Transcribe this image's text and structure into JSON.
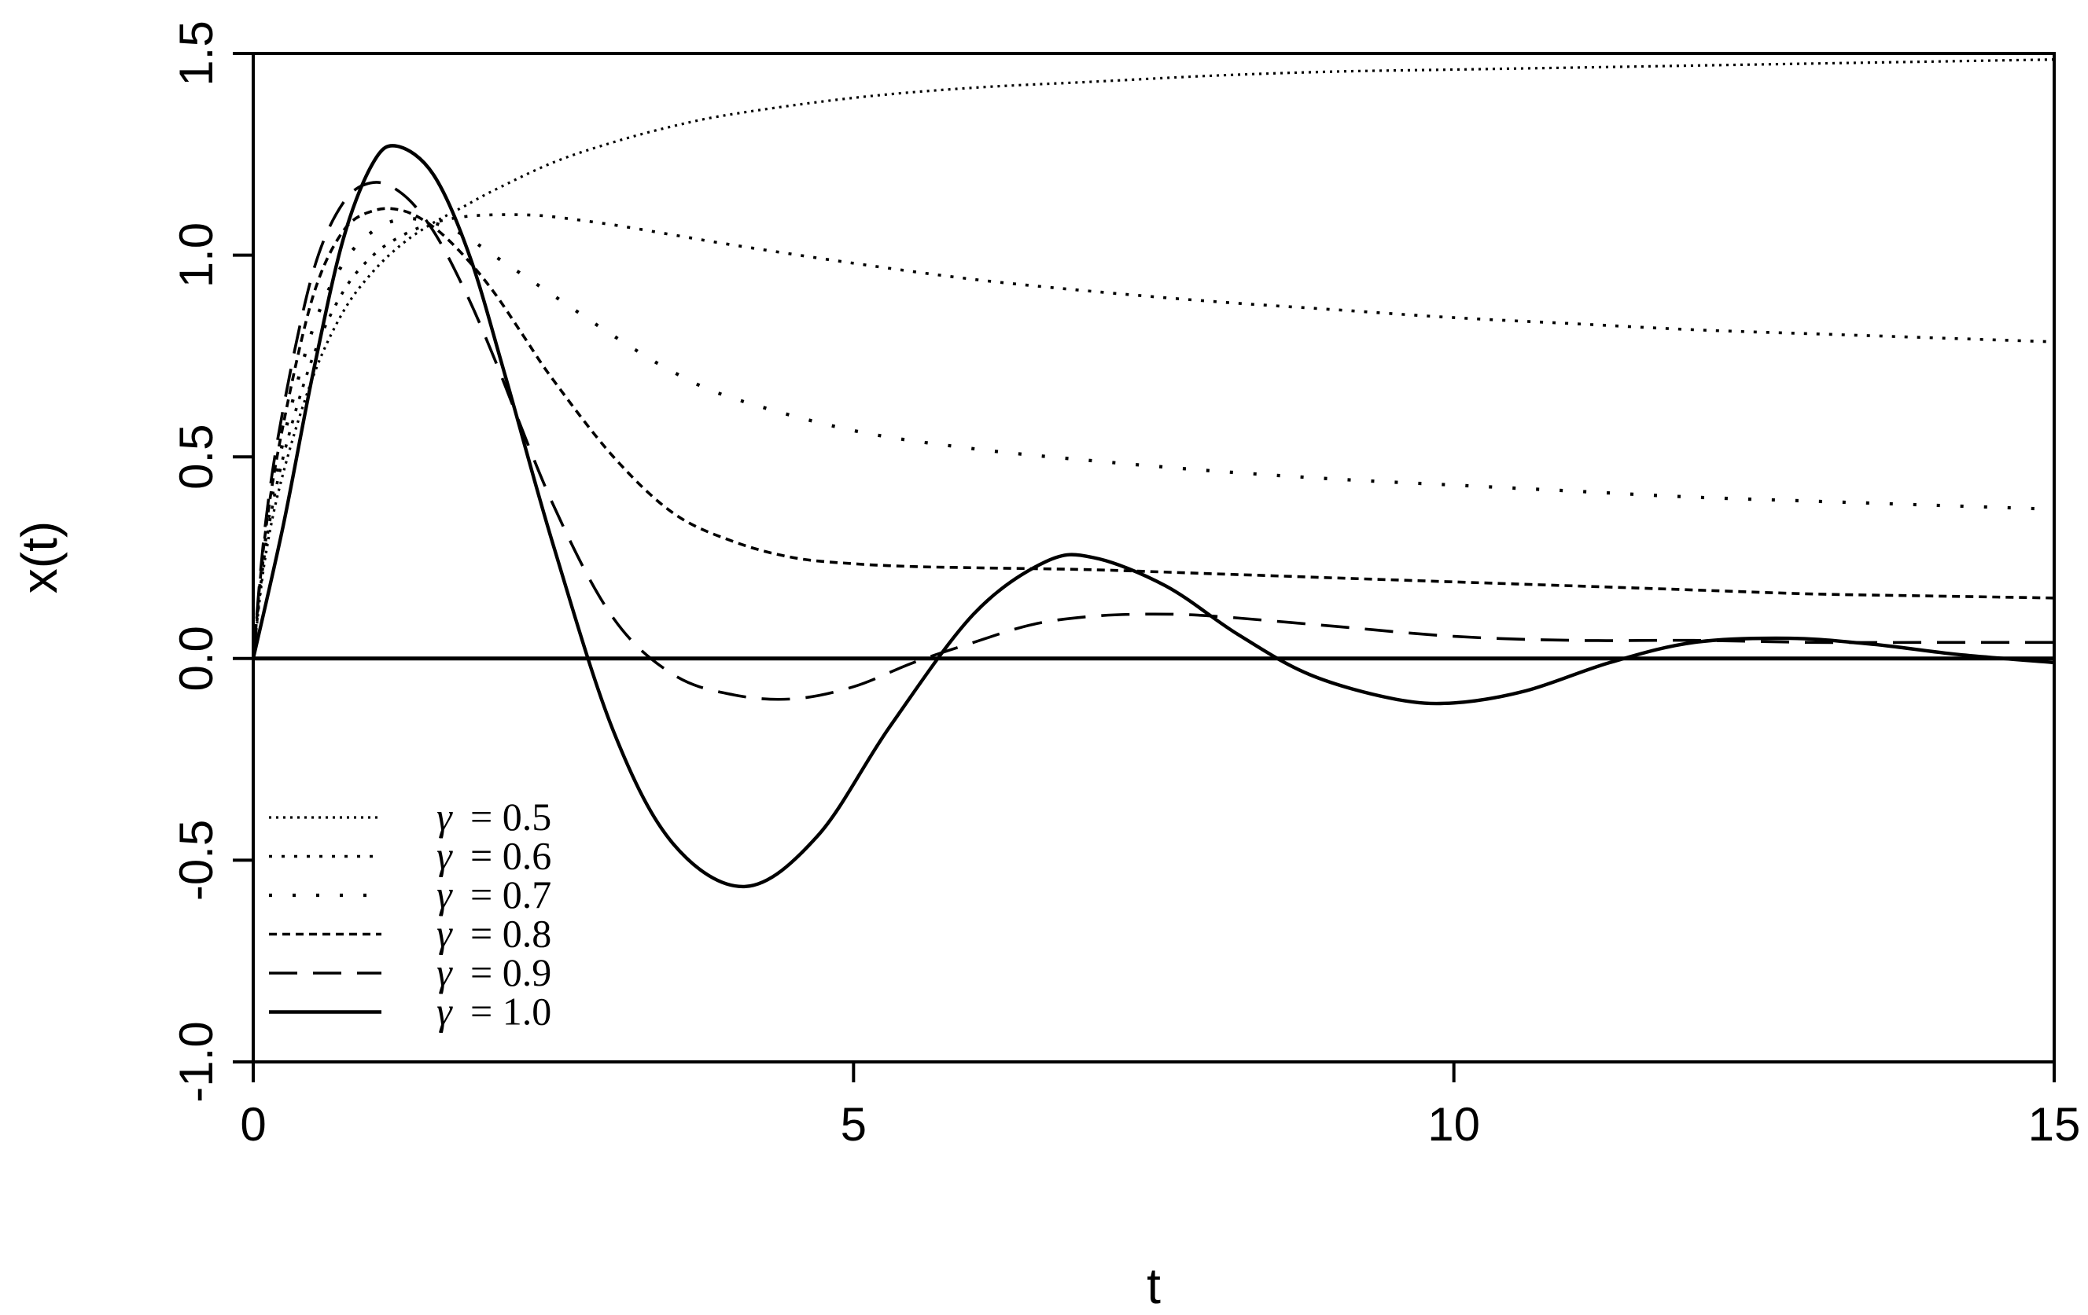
{
  "chart_data": {
    "type": "line",
    "title": "",
    "xlabel": "t",
    "ylabel": "x(t)",
    "xlim": [
      0,
      15
    ],
    "ylim": [
      -1.0,
      1.5
    ],
    "xticks": [
      0,
      5,
      10,
      15
    ],
    "xtick_labels": [
      "0",
      "5",
      "10",
      "15"
    ],
    "yticks": [
      -1.0,
      -0.5,
      0.0,
      0.5,
      1.0,
      1.5
    ],
    "ytick_labels": [
      "-1.0",
      "-0.5",
      "0.0",
      "0.5",
      "1.0",
      "1.5"
    ],
    "reference_line": {
      "y": 0.0,
      "style": "solid"
    },
    "grid": false,
    "legend_position": "bottom-left",
    "series": [
      {
        "name": "γ = 0.5",
        "gamma_symbol": "γ",
        "gamma_value": "= 0.5",
        "line_style": "dense-dotted",
        "x": [
          0,
          0.1,
          0.25,
          0.5,
          0.75,
          1.0,
          1.25,
          1.5,
          1.75,
          2.0,
          2.5,
          3.0,
          3.5,
          4.0,
          5.0,
          6.0,
          7.0,
          8.0,
          9.0,
          10.0,
          11.0,
          12.0,
          13.0,
          14.0,
          15.0
        ],
        "y": [
          0,
          0.25,
          0.46,
          0.7,
          0.86,
          0.96,
          1.03,
          1.08,
          1.12,
          1.16,
          1.23,
          1.28,
          1.32,
          1.35,
          1.39,
          1.415,
          1.43,
          1.445,
          1.455,
          1.46,
          1.465,
          1.47,
          1.475,
          1.48,
          1.485
        ]
      },
      {
        "name": "γ = 0.6",
        "gamma_symbol": "γ",
        "gamma_value": "= 0.6",
        "line_style": "dotted",
        "x": [
          0,
          0.1,
          0.25,
          0.5,
          0.75,
          1.0,
          1.25,
          1.5,
          1.75,
          2.0,
          2.25,
          2.5,
          3.0,
          3.5,
          4.0,
          5.0,
          6.0,
          7.0,
          8.0,
          9.0,
          10.0,
          11.0,
          12.0,
          13.0,
          14.0,
          15.0
        ],
        "y": [
          0,
          0.27,
          0.5,
          0.75,
          0.91,
          1.0,
          1.05,
          1.08,
          1.095,
          1.1,
          1.1,
          1.095,
          1.075,
          1.05,
          1.025,
          0.98,
          0.94,
          0.91,
          0.885,
          0.865,
          0.845,
          0.83,
          0.815,
          0.805,
          0.795,
          0.785
        ]
      },
      {
        "name": "γ = 0.7",
        "gamma_symbol": "γ",
        "gamma_value": "= 0.7",
        "line_style": "sparse-dotted",
        "x": [
          0,
          0.1,
          0.25,
          0.5,
          0.75,
          1.0,
          1.25,
          1.5,
          1.75,
          2.0,
          2.5,
          3.0,
          3.5,
          4.0,
          5.0,
          6.0,
          7.0,
          8.0,
          9.0,
          10.0,
          11.0,
          12.0,
          13.0,
          14.0,
          15.0
        ],
        "y": [
          0,
          0.29,
          0.54,
          0.82,
          0.98,
          1.06,
          1.09,
          1.08,
          1.05,
          1.0,
          0.9,
          0.8,
          0.71,
          0.645,
          0.565,
          0.52,
          0.49,
          0.465,
          0.445,
          0.43,
          0.415,
          0.4,
          0.39,
          0.38,
          0.37
        ]
      },
      {
        "name": "γ = 0.8",
        "gamma_symbol": "γ",
        "gamma_value": "= 0.8",
        "line_style": "short-dashed",
        "x": [
          0,
          0.1,
          0.25,
          0.5,
          0.75,
          1.0,
          1.25,
          1.5,
          1.75,
          2.0,
          2.25,
          2.5,
          3.0,
          3.5,
          4.0,
          4.5,
          5.0,
          5.5,
          6.0,
          7.0,
          8.0,
          9.0,
          10.0,
          11.0,
          12.0,
          13.0,
          14.0,
          15.0
        ],
        "y": [
          0,
          0.31,
          0.58,
          0.9,
          1.06,
          1.11,
          1.11,
          1.07,
          1.0,
          0.91,
          0.8,
          0.69,
          0.5,
          0.36,
          0.29,
          0.25,
          0.235,
          0.228,
          0.225,
          0.22,
          0.21,
          0.2,
          0.19,
          0.18,
          0.17,
          0.16,
          0.155,
          0.15
        ]
      },
      {
        "name": "γ = 0.9",
        "gamma_symbol": "γ",
        "gamma_value": "= 0.9",
        "line_style": "long-dashed",
        "x": [
          0,
          0.1,
          0.25,
          0.5,
          0.75,
          1.0,
          1.25,
          1.5,
          1.75,
          2.0,
          2.5,
          3.0,
          3.5,
          4.0,
          4.5,
          5.0,
          5.5,
          6.0,
          6.5,
          7.0,
          7.5,
          8.0,
          9.0,
          10.0,
          11.0,
          12.0,
          13.0,
          14.0,
          15.0
        ],
        "y": [
          0,
          0.33,
          0.62,
          0.96,
          1.13,
          1.18,
          1.15,
          1.06,
          0.92,
          0.75,
          0.38,
          0.1,
          -0.04,
          -0.09,
          -0.1,
          -0.07,
          -0.01,
          0.04,
          0.085,
          0.105,
          0.11,
          0.105,
          0.08,
          0.055,
          0.045,
          0.045,
          0.04,
          0.04,
          0.04
        ]
      },
      {
        "name": "γ = 1.0",
        "gamma_symbol": "γ",
        "gamma_value": "= 1.0",
        "line_style": "solid",
        "x": [
          0,
          0.25,
          0.5,
          0.75,
          1.0,
          1.2,
          1.5,
          1.8,
          2.1,
          2.5,
          3.0,
          3.5,
          4.1,
          4.7,
          5.3,
          6.0,
          6.6,
          7.0,
          7.6,
          8.2,
          8.8,
          9.5,
          10.0,
          10.6,
          11.3,
          12.0,
          12.8,
          13.5,
          14.2,
          15.0
        ],
        "y": [
          0,
          0.33,
          0.71,
          1.04,
          1.23,
          1.27,
          1.2,
          1.0,
          0.7,
          0.28,
          -0.18,
          -0.46,
          -0.565,
          -0.44,
          -0.17,
          0.11,
          0.24,
          0.25,
          0.18,
          0.06,
          -0.04,
          -0.1,
          -0.11,
          -0.08,
          -0.01,
          0.04,
          0.05,
          0.035,
          0.01,
          -0.01
        ]
      }
    ]
  }
}
